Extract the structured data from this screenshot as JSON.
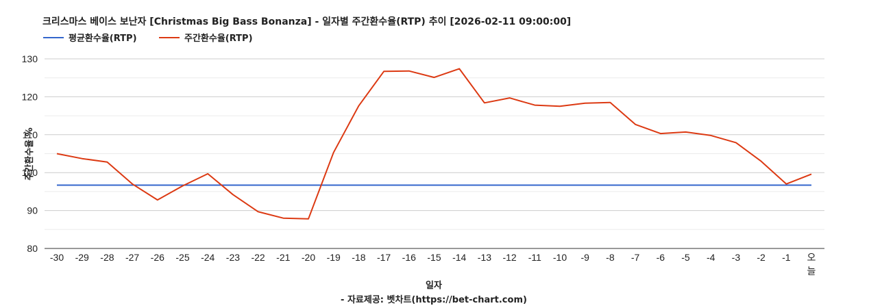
{
  "chart_data": {
    "type": "line",
    "title": "크리스마스 베이스 보난자 [Christmas Big Bass Bonanza] - 일자별 주간환수율(RTP) 추이 [2026-02-11 09:00:00]",
    "xlabel": "일자",
    "ylabel": "주간환수율 %",
    "credit": "- 자료제공: 벳차트(https://bet-chart.com)",
    "ylim": [
      80,
      130
    ],
    "yticks": [
      80,
      90,
      100,
      110,
      120,
      130
    ],
    "grid": true,
    "legend_position": "top-left",
    "categories": [
      "-30",
      "-29",
      "-28",
      "-27",
      "-26",
      "-25",
      "-24",
      "-23",
      "-22",
      "-21",
      "-20",
      "-19",
      "-18",
      "-17",
      "-16",
      "-15",
      "-14",
      "-13",
      "-12",
      "-11",
      "-10",
      "-9",
      "-8",
      "-7",
      "-6",
      "-5",
      "-4",
      "-3",
      "-2",
      "-1",
      "오늘"
    ],
    "series": [
      {
        "name": "평균환수율(RTP)",
        "color": "#3366cc",
        "values": [
          96.7,
          96.7,
          96.7,
          96.7,
          96.7,
          96.7,
          96.7,
          96.7,
          96.7,
          96.7,
          96.7,
          96.7,
          96.7,
          96.7,
          96.7,
          96.7,
          96.7,
          96.7,
          96.7,
          96.7,
          96.7,
          96.7,
          96.7,
          96.7,
          96.7,
          96.7,
          96.7,
          96.7,
          96.7,
          96.7,
          96.7
        ]
      },
      {
        "name": "주간환수율(RTP)",
        "color": "#dc3912",
        "values": [
          105.0,
          103.7,
          102.8,
          97.0,
          92.8,
          96.5,
          99.7,
          94.2,
          89.7,
          88.0,
          87.8,
          105.3,
          117.6,
          126.7,
          126.8,
          125.1,
          127.4,
          118.4,
          119.7,
          117.8,
          117.5,
          118.3,
          118.5,
          112.7,
          110.3,
          110.7,
          109.8,
          107.9,
          103.0,
          97.0,
          99.6
        ]
      }
    ]
  }
}
